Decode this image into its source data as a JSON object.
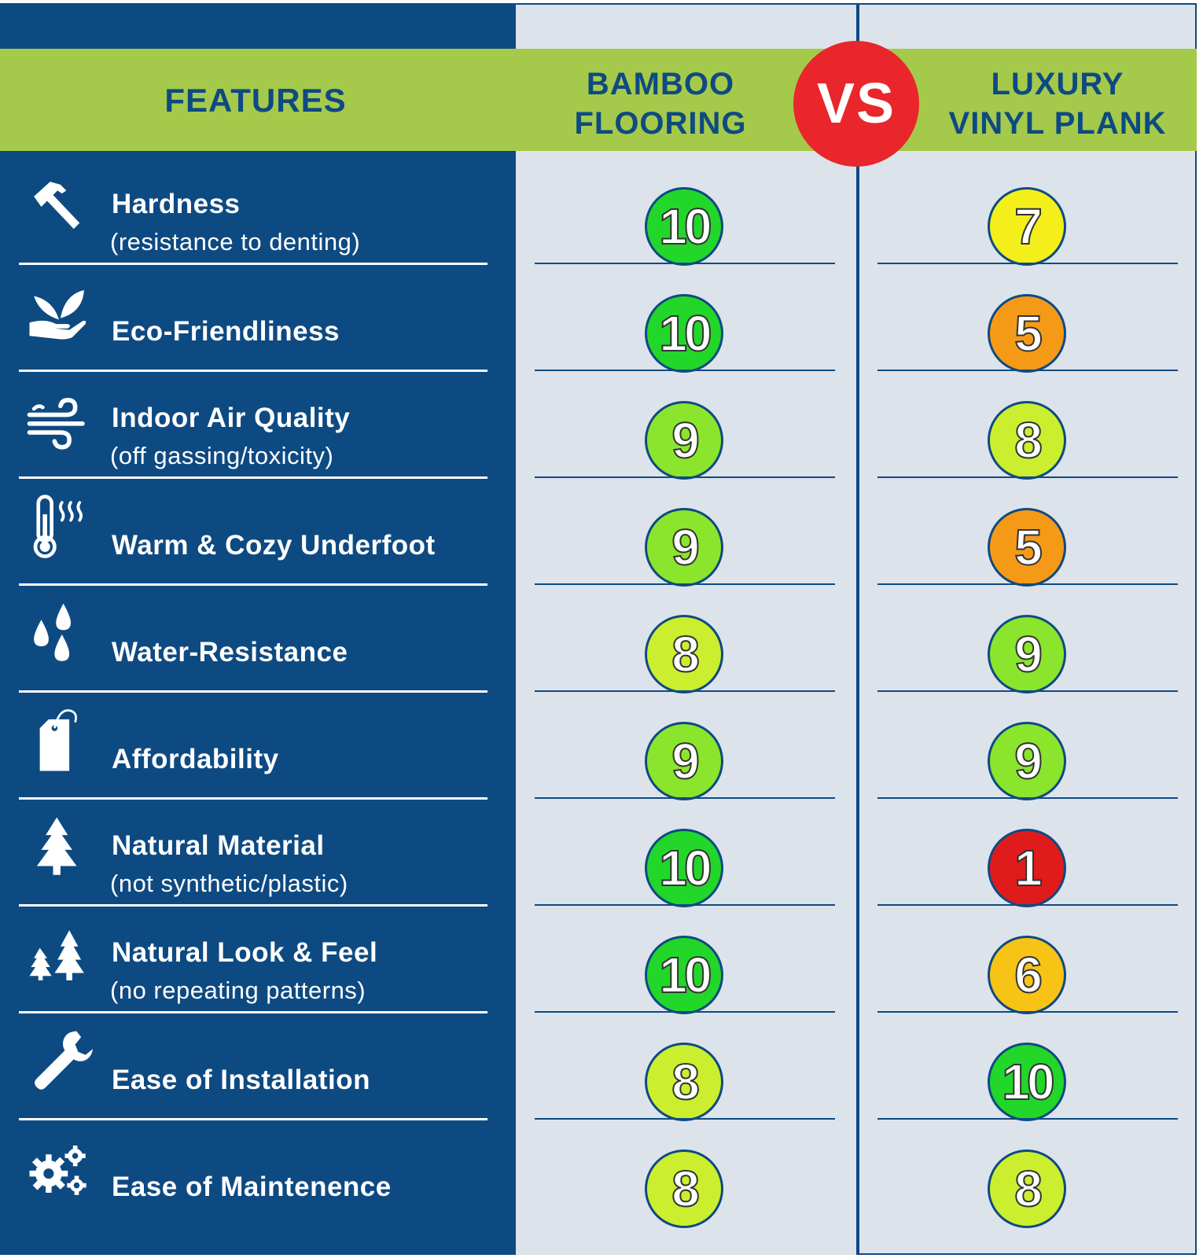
{
  "header": {
    "features_label": "FEATURES",
    "col1_line1": "BAMBOO",
    "col1_line2": "FLOORING",
    "vs_label": "VS",
    "col2_line1": "LUXURY",
    "col2_line2": "VINYL PLANK"
  },
  "colors": {
    "navy": "#0e4a82",
    "header_green": "#a5c94a",
    "vs_red": "#e8262c",
    "column_gray": "#dde3eb",
    "score_scale": {
      "1": "#e01b1b",
      "5": "#f59a17",
      "6": "#f7c315",
      "7": "#f4ef1a",
      "8": "#cbee2e",
      "9": "#8be52c",
      "10": "#22d62a"
    }
  },
  "rows": [
    {
      "icon": "hammer-icon",
      "title": "Hardness",
      "subtitle": "(resistance to denting)",
      "bamboo": "10",
      "vinyl": "7"
    },
    {
      "icon": "eco-hand-leaf-icon",
      "title": "Eco-Friendliness",
      "subtitle": "",
      "bamboo": "10",
      "vinyl": "5"
    },
    {
      "icon": "wind-icon",
      "title": "Indoor Air Quality",
      "subtitle": "(off gassing/toxicity)",
      "bamboo": "9",
      "vinyl": "8"
    },
    {
      "icon": "thermometer-icon",
      "title": "Warm & Cozy Underfoot",
      "subtitle": "",
      "bamboo": "9",
      "vinyl": "5"
    },
    {
      "icon": "water-drops-icon",
      "title": "Water-Resistance",
      "subtitle": "",
      "bamboo": "8",
      "vinyl": "9"
    },
    {
      "icon": "price-tag-icon",
      "title": "Affordability",
      "subtitle": "",
      "bamboo": "9",
      "vinyl": "9"
    },
    {
      "icon": "pine-tree-icon",
      "title": "Natural Material",
      "subtitle": "(not synthetic/plastic)",
      "bamboo": "10",
      "vinyl": "1"
    },
    {
      "icon": "two-trees-icon",
      "title": "Natural Look & Feel",
      "subtitle": "(no repeating patterns)",
      "bamboo": "10",
      "vinyl": "6"
    },
    {
      "icon": "wrench-icon",
      "title": "Ease of Installation",
      "subtitle": "",
      "bamboo": "8",
      "vinyl": "10"
    },
    {
      "icon": "gears-icon",
      "title": "Ease of Maintenence",
      "subtitle": "",
      "bamboo": "8",
      "vinyl": "8"
    }
  ]
}
